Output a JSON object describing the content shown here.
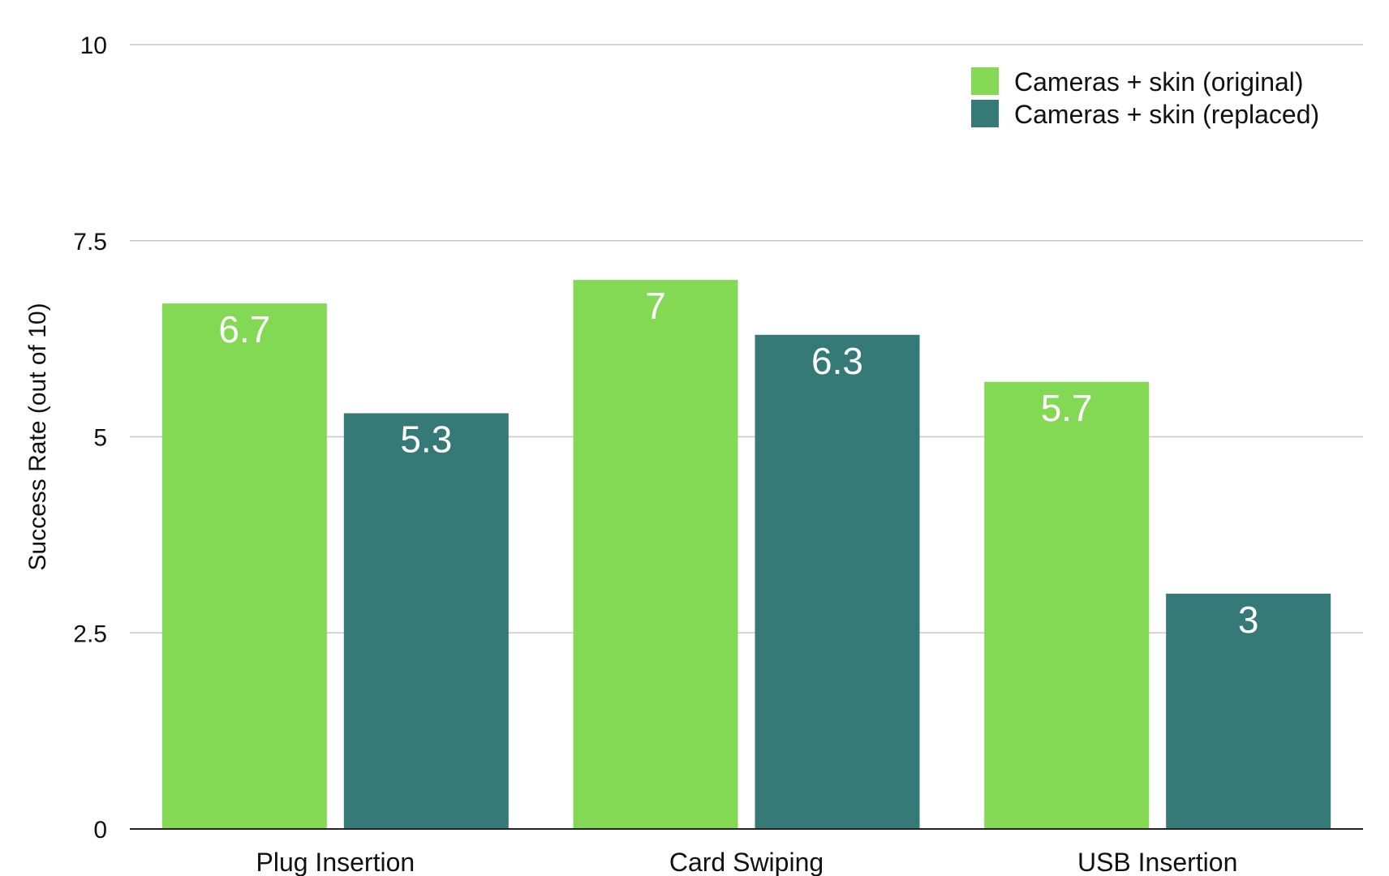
{
  "chart_data": {
    "type": "bar",
    "categories": [
      "Plug Insertion",
      "Card Swiping",
      "USB Insertion"
    ],
    "series": [
      {
        "name": "Cameras + skin (original)",
        "values": [
          6.7,
          7,
          5.7
        ],
        "color": "#83d854"
      },
      {
        "name": "Cameras + skin (replaced)",
        "values": [
          5.3,
          6.3,
          3
        ],
        "color": "#367a77"
      }
    ],
    "title": "",
    "xlabel": "",
    "ylabel": "Success Rate (out of 10)",
    "ylim": [
      0,
      10
    ],
    "yticks": [
      0,
      2.5,
      5,
      7.5,
      10
    ],
    "ytick_labels": [
      "0",
      "2.5",
      "5",
      "7.5",
      "10"
    ],
    "grid": true,
    "legend_position": "top-right",
    "data_labels": true
  }
}
